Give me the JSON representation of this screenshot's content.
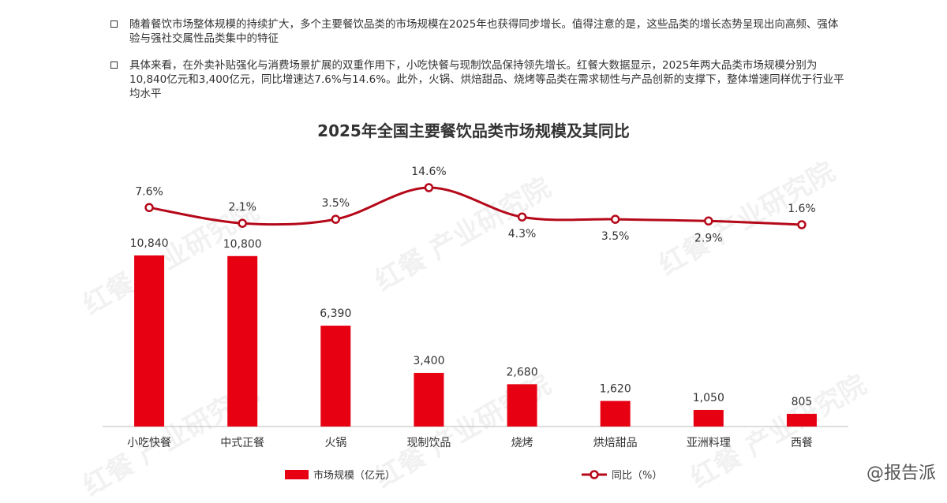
{
  "bullets": [
    "随着餐饮市场整体规模的持续扩大，多个主要餐饮品类的市场规模在2025年也获得同步增长。值得注意的是，这些品类的增长态势呈现出向高频、强体验与强社交属性品类集中的特征",
    "具体来看，在外卖补贴强化与消费场景扩展的双重作用下，小吃快餐与现制饮品保持领先增长。红餐大数据显示，2025年两大品类市场规模分别为10,840亿元和3,400亿元，同比增速达7.6%与14.6%。此外，火锅、烘焙甜品、烧烤等品类在需求韧性与产品创新的支撑下，整体增速同样优于行业平均水平"
  ],
  "watermark": "红餐 产业研究院",
  "corner_mark": "@报告派",
  "chart_data": {
    "type": "bar",
    "title": "2025年全国主要餐饮品类市场规模及其同比",
    "categories": [
      "小吃快餐",
      "中式正餐",
      "火锅",
      "现制饮品",
      "烧烤",
      "烘焙甜品",
      "亚洲料理",
      "西餐"
    ],
    "series": [
      {
        "name": "市场规模（亿元）",
        "type": "bar",
        "color": "#E60012",
        "values": [
          10840,
          10800,
          6390,
          3400,
          2680,
          1620,
          1050,
          805
        ],
        "labels": [
          "10,840",
          "10,800",
          "6,390",
          "3,400",
          "2,680",
          "1,620",
          "1,050",
          "805"
        ]
      },
      {
        "name": "同比（%）",
        "type": "line",
        "color": "#B5091A",
        "values": [
          7.6,
          2.1,
          3.5,
          14.6,
          4.3,
          3.5,
          2.9,
          1.6
        ],
        "labels": [
          "7.6%",
          "2.1%",
          "3.5%",
          "14.6%",
          "4.3%",
          "3.5%",
          "2.9%",
          "1.6%"
        ]
      }
    ],
    "legend": "bottom",
    "grid": false
  }
}
